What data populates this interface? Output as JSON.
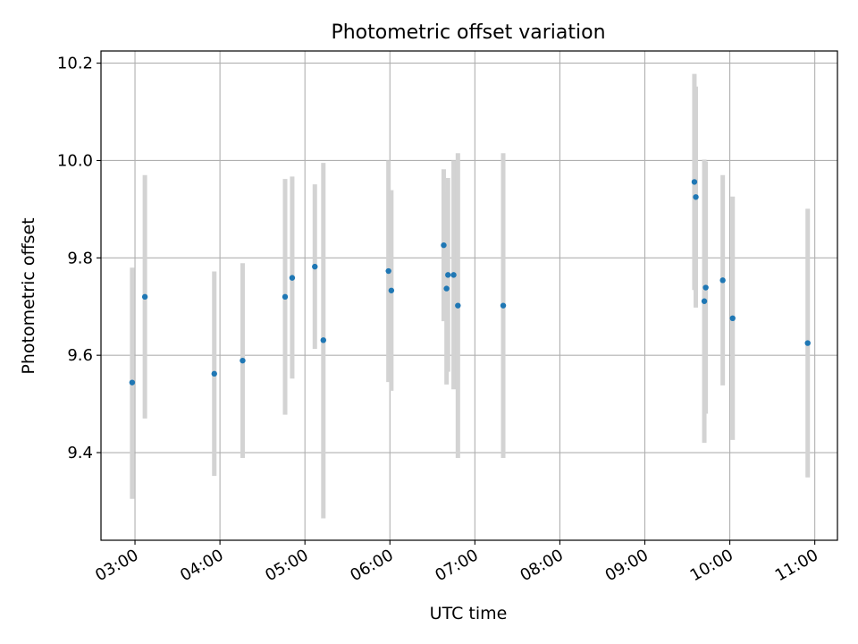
{
  "chart_data": {
    "type": "scatter",
    "title": "Photometric offset variation",
    "xlabel": "UTC time",
    "ylabel": "Photometric offset",
    "x_tick_labels": [
      "03:00",
      "04:00",
      "05:00",
      "06:00",
      "07:00",
      "08:00",
      "09:00",
      "10:00",
      "11:00"
    ],
    "x_tick_hours": [
      3,
      4,
      5,
      6,
      7,
      8,
      9,
      10,
      11
    ],
    "y_ticks": [
      9.4,
      9.6,
      9.8,
      10.0,
      10.2
    ],
    "y_tick_labels": [
      "9.4",
      "9.6",
      "9.8",
      "10.0",
      "10.2"
    ],
    "xlim": [
      "02:36",
      "11:16"
    ],
    "ylim": [
      9.22,
      10.225
    ],
    "grid": true,
    "colors": {
      "point": "#1f77b4",
      "errorbar": "#d3d3d3",
      "grid": "#b0b0b0"
    },
    "points": [
      {
        "t": "02:58",
        "y": 9.544,
        "lo": 9.305,
        "hi": 9.78
      },
      {
        "t": "03:07",
        "y": 9.72,
        "lo": 9.47,
        "hi": 9.97
      },
      {
        "t": "03:56",
        "y": 9.562,
        "lo": 9.352,
        "hi": 9.772
      },
      {
        "t": "04:16",
        "y": 9.589,
        "lo": 9.389,
        "hi": 9.789
      },
      {
        "t": "04:46",
        "y": 9.72,
        "lo": 9.478,
        "hi": 9.962
      },
      {
        "t": "04:51",
        "y": 9.759,
        "lo": 9.552,
        "hi": 9.967
      },
      {
        "t": "05:07",
        "y": 9.782,
        "lo": 9.613,
        "hi": 9.951
      },
      {
        "t": "05:13",
        "y": 9.631,
        "lo": 9.265,
        "hi": 9.995
      },
      {
        "t": "05:59",
        "y": 9.773,
        "lo": 9.545,
        "hi": 10.0
      },
      {
        "t": "06:01",
        "y": 9.733,
        "lo": 9.527,
        "hi": 9.939
      },
      {
        "t": "06:38",
        "y": 9.826,
        "lo": 9.67,
        "hi": 9.982
      },
      {
        "t": "06:40",
        "y": 9.737,
        "lo": 9.54,
        "hi": 9.934
      },
      {
        "t": "06:41",
        "y": 9.765,
        "lo": 9.566,
        "hi": 9.964
      },
      {
        "t": "06:45",
        "y": 9.765,
        "lo": 9.53,
        "hi": 10.0
      },
      {
        "t": "06:48",
        "y": 9.702,
        "lo": 9.389,
        "hi": 10.015
      },
      {
        "t": "07:20",
        "y": 9.702,
        "lo": 9.389,
        "hi": 10.015
      },
      {
        "t": "09:35",
        "y": 9.956,
        "lo": 9.734,
        "hi": 10.178
      },
      {
        "t": "09:36",
        "y": 9.925,
        "lo": 9.698,
        "hi": 10.152
      },
      {
        "t": "09:42",
        "y": 9.711,
        "lo": 9.42,
        "hi": 10.002
      },
      {
        "t": "09:43",
        "y": 9.739,
        "lo": 9.48,
        "hi": 9.998
      },
      {
        "t": "09:55",
        "y": 9.754,
        "lo": 9.538,
        "hi": 9.97
      },
      {
        "t": "10:02",
        "y": 9.676,
        "lo": 9.426,
        "hi": 9.926
      },
      {
        "t": "10:55",
        "y": 9.625,
        "lo": 9.349,
        "hi": 9.901
      }
    ]
  }
}
